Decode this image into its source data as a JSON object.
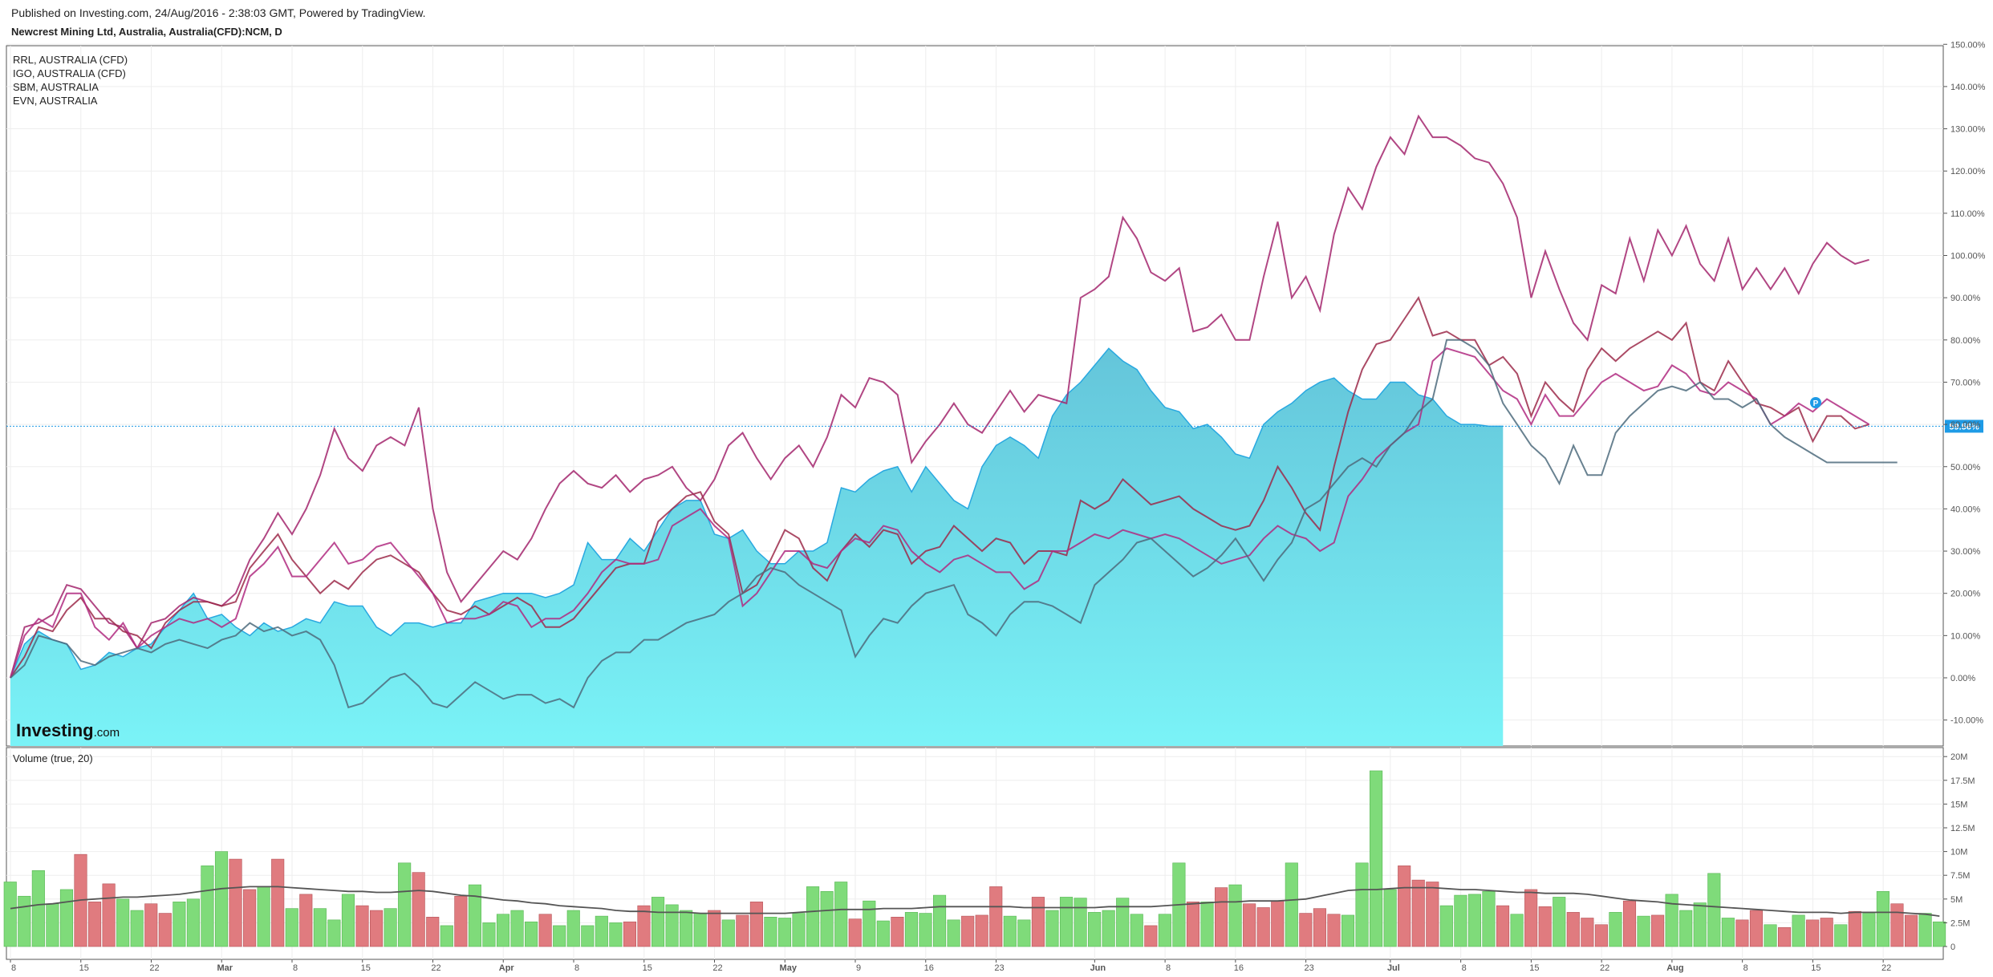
{
  "header": {
    "published": "Published on Investing.com, 24/Aug/2016 - 2:38:03 GMT, Powered by TradingView.",
    "symbol": "Newcrest Mining Ltd, Australia, Australia(CFD):NCM, D"
  },
  "logo": {
    "main": "Investing",
    "suffix": ".com"
  },
  "colors": {
    "area_fill_top": "#64c5da",
    "area_fill_bottom": "#7af3f7",
    "area_line": "#29a8e0",
    "magenta": "#a3266d",
    "maroon": "#9c2a4a",
    "gray": "#4e6b7c",
    "price_label": "#1e9be6",
    "vol_up": "#7fdb7a",
    "vol_down": "#e07b7f",
    "vol_ma": "#555555",
    "grid": "#eeeeee"
  },
  "chart_data": {
    "type": "line",
    "title": "Newcrest Mining Ltd, Australia, Australia(CFD):NCM, D",
    "y_unit": "%",
    "ylim": [
      -16,
      150
    ],
    "y_ticks": [
      "150.00%",
      "140.00%",
      "130.00%",
      "120.00%",
      "110.00%",
      "100.00%",
      "90.00%",
      "80.00%",
      "70.00%",
      "60.00%",
      "50.00%",
      "40.00%",
      "30.00%",
      "20.00%",
      "10.00%",
      "0.00%",
      "-10.00%"
    ],
    "y_tick_values": [
      150,
      140,
      130,
      120,
      110,
      100,
      90,
      80,
      70,
      60,
      50,
      40,
      30,
      20,
      10,
      0,
      -10
    ],
    "x_ticks": [
      {
        "label": "8",
        "i": 0
      },
      {
        "label": "15",
        "i": 5
      },
      {
        "label": "22",
        "i": 10
      },
      {
        "label": "Mar",
        "i": 15
      },
      {
        "label": "8",
        "i": 20
      },
      {
        "label": "15",
        "i": 25
      },
      {
        "label": "22",
        "i": 30
      },
      {
        "label": "Apr",
        "i": 35
      },
      {
        "label": "8",
        "i": 40
      },
      {
        "label": "15",
        "i": 45
      },
      {
        "label": "22",
        "i": 50
      },
      {
        "label": "May",
        "i": 55
      },
      {
        "label": "9",
        "i": 60
      },
      {
        "label": "16",
        "i": 65
      },
      {
        "label": "23",
        "i": 70
      },
      {
        "label": "Jun",
        "i": 77
      },
      {
        "label": "8",
        "i": 82
      },
      {
        "label": "16",
        "i": 87
      },
      {
        "label": "23",
        "i": 92
      },
      {
        "label": "Jul",
        "i": 98
      },
      {
        "label": "8",
        "i": 103
      },
      {
        "label": "15",
        "i": 108
      },
      {
        "label": "22",
        "i": 113
      },
      {
        "label": "Aug",
        "i": 118
      },
      {
        "label": "8",
        "i": 123
      },
      {
        "label": "15",
        "i": 128
      },
      {
        "label": "22",
        "i": 133
      }
    ],
    "last_price_label": "59.56%",
    "last_price_value": 59.56,
    "legend": [
      "RRL, AUSTRALIA (CFD)",
      "IGO, AUSTRALIA (CFD)",
      "SBM, AUSTRALIA",
      "EVN, AUSTRALIA"
    ],
    "main_area": {
      "name": "NCM",
      "values": [
        0,
        8,
        11,
        9,
        8,
        2,
        3,
        6,
        5,
        7,
        8,
        12,
        16,
        20,
        14,
        15,
        12,
        10,
        13,
        11,
        12,
        14,
        13,
        18,
        17,
        17,
        12,
        10,
        13,
        13,
        12,
        13,
        13,
        18,
        19,
        20,
        20,
        20,
        19,
        20,
        22,
        32,
        28,
        28,
        33,
        30,
        35,
        40,
        42,
        42,
        34,
        33,
        35,
        30,
        27,
        27,
        30,
        30,
        32,
        45,
        44,
        47,
        49,
        50,
        44,
        50,
        46,
        42,
        40,
        50,
        55,
        57,
        55,
        52,
        62,
        67,
        70,
        74,
        78,
        75,
        73,
        68,
        64,
        63,
        59,
        60,
        57,
        53,
        52,
        60,
        63,
        65,
        68,
        70,
        71,
        68,
        66,
        66,
        70,
        70,
        67,
        66,
        62,
        60,
        60,
        59.56,
        59.56
      ]
    },
    "series": [
      {
        "label": "RRL, AUSTRALIA (CFD)",
        "color": "#a3266d",
        "values": [
          0,
          12,
          13,
          15,
          22,
          21,
          17,
          13,
          12,
          7,
          13,
          14,
          17,
          19,
          18,
          17,
          20,
          28,
          33,
          39,
          34,
          40,
          48,
          59,
          52,
          49,
          55,
          57,
          55,
          64,
          40,
          25,
          18,
          22,
          26,
          30,
          28,
          33,
          40,
          46,
          49,
          46,
          45,
          48,
          44,
          47,
          48,
          50,
          45,
          42,
          47,
          55,
          58,
          52,
          47,
          52,
          55,
          50,
          57,
          67,
          64,
          71,
          70,
          67,
          51,
          56,
          60,
          65,
          60,
          58,
          63,
          68,
          63,
          67,
          66,
          65,
          90,
          92,
          95,
          109,
          104,
          96,
          94,
          97,
          82,
          83,
          86,
          80,
          80,
          95,
          108,
          90,
          95,
          87,
          105,
          116,
          111,
          121,
          128,
          124,
          133,
          128,
          128,
          126,
          123,
          122,
          117,
          109,
          90,
          101,
          92,
          84,
          80,
          93,
          91,
          104,
          94,
          106,
          100,
          107,
          98,
          94,
          104,
          92,
          97,
          92,
          97,
          91,
          98,
          103,
          100,
          98,
          99
        ]
      },
      {
        "label": "IGO, AUSTRALIA (CFD)",
        "color": "#9c2a4a",
        "values": [
          0,
          5,
          12,
          11,
          16,
          19,
          14,
          14,
          11,
          10,
          7,
          13,
          16,
          18,
          18,
          17,
          18,
          26,
          30,
          34,
          28,
          24,
          20,
          23,
          21,
          25,
          28,
          29,
          27,
          25,
          20,
          16,
          15,
          17,
          15,
          17,
          19,
          17,
          12,
          12,
          14,
          18,
          22,
          26,
          27,
          27,
          37,
          40,
          43,
          44,
          37,
          34,
          20,
          22,
          28,
          35,
          33,
          26,
          23,
          30,
          34,
          31,
          35,
          34,
          27,
          30,
          31,
          36,
          33,
          30,
          33,
          32,
          27,
          30,
          30,
          29,
          42,
          40,
          42,
          47,
          44,
          41,
          42,
          43,
          40,
          38,
          36,
          35,
          36,
          42,
          50,
          45,
          39,
          35,
          50,
          63,
          73,
          79,
          80,
          85,
          90,
          81,
          82,
          80,
          80,
          74,
          76,
          72,
          62,
          70,
          66,
          63,
          73,
          78,
          75,
          78,
          80,
          82,
          80,
          84,
          70,
          68,
          75,
          70,
          65,
          64,
          62,
          64,
          56,
          62,
          62,
          59,
          60
        ]
      },
      {
        "label": "SBM, AUSTRALIA",
        "color": "#b02a80",
        "values": [
          0,
          10,
          14,
          12,
          20,
          20,
          12,
          9,
          13,
          7,
          10,
          12,
          14,
          13,
          14,
          12,
          14,
          24,
          27,
          31,
          24,
          24,
          28,
          32,
          27,
          28,
          31,
          32,
          28,
          24,
          20,
          13,
          14,
          14,
          15,
          18,
          17,
          12,
          14,
          14,
          16,
          20,
          25,
          28,
          27,
          27,
          28,
          36,
          38,
          40,
          36,
          33,
          17,
          20,
          25,
          30,
          30,
          27,
          26,
          30,
          33,
          32,
          36,
          35,
          30,
          27,
          25,
          28,
          29,
          27,
          25,
          25,
          21,
          23,
          30,
          30,
          32,
          34,
          33,
          35,
          34,
          33,
          34,
          33,
          31,
          29,
          27,
          28,
          29,
          33,
          36,
          34,
          33,
          30,
          32,
          43,
          47,
          52,
          55,
          58,
          60,
          75,
          78,
          77,
          76,
          72,
          68,
          66,
          60,
          67,
          62,
          62,
          66,
          70,
          72,
          70,
          68,
          69,
          74,
          72,
          68,
          67,
          70,
          68,
          66,
          60,
          62,
          65,
          63,
          66,
          64,
          62,
          60
        ]
      },
      {
        "label": "EVN, AUSTRALIA",
        "color": "#4e6b7c",
        "values": [
          0,
          3,
          10,
          9,
          8,
          4,
          3,
          5,
          6,
          7,
          6,
          8,
          9,
          8,
          7,
          9,
          10,
          13,
          11,
          12,
          10,
          11,
          9,
          3,
          -7,
          -6,
          -3,
          0,
          1,
          -2,
          -6,
          -7,
          -4,
          -1,
          -3,
          -5,
          -4,
          -4,
          -6,
          -5,
          -7,
          0,
          4,
          6,
          6,
          9,
          9,
          11,
          13,
          14,
          15,
          18,
          20,
          24,
          26,
          25,
          22,
          20,
          18,
          16,
          5,
          10,
          14,
          13,
          17,
          20,
          21,
          22,
          15,
          13,
          10,
          15,
          18,
          18,
          17,
          15,
          13,
          22,
          25,
          28,
          32,
          33,
          30,
          27,
          24,
          26,
          29,
          33,
          28,
          23,
          28,
          32,
          40,
          42,
          46,
          50,
          52,
          50,
          55,
          58,
          63,
          66,
          80,
          80,
          78,
          74,
          65,
          60,
          55,
          52,
          46,
          55,
          48,
          48,
          58,
          62,
          65,
          68,
          69,
          68,
          70,
          66,
          66,
          64,
          66,
          60,
          57,
          55,
          53,
          51,
          51,
          51,
          51,
          51,
          51
        ]
      }
    ],
    "volume": {
      "title": "Volume (true, 20)",
      "ylim": [
        0,
        20000000
      ],
      "y_ticks": [
        "20M",
        "17.5M",
        "15M",
        "12.5M",
        "10M",
        "7.5M",
        "5M",
        "2.5M",
        "0"
      ],
      "y_tick_values": [
        20000000,
        17500000,
        15000000,
        12500000,
        10000000,
        7500000,
        5000000,
        2500000,
        0
      ],
      "values": [
        6.8,
        5.3,
        8,
        4.5,
        6,
        9.7,
        4.7,
        6.6,
        5,
        3.8,
        4.5,
        3.5,
        4.7,
        5,
        8.5,
        10,
        9.2,
        6,
        6.3,
        9.2,
        4,
        5.5,
        4,
        2.8,
        5.5,
        4.3,
        3.8,
        4,
        8.8,
        7.8,
        3.1,
        2.2,
        5.3,
        6.5,
        2.5,
        3.4,
        3.8,
        2.6,
        3.4,
        2.2,
        3.8,
        2.2,
        3.2,
        2.5,
        2.6,
        4.3,
        5.2,
        4.4,
        3.8,
        3.5,
        3.8,
        2.8,
        3.3,
        4.7,
        3.1,
        3,
        3.5,
        6.3,
        5.8,
        6.8,
        2.9,
        4.8,
        2.7,
        3.1,
        3.6,
        3.5,
        5.4,
        2.8,
        3.2,
        3.3,
        6.3,
        3.2,
        2.8,
        5.2,
        3.8,
        5.2,
        5.1,
        3.6,
        3.8,
        5.1,
        3.4,
        2.2,
        3.4,
        8.8,
        4.7,
        4.7,
        6.2,
        6.5,
        4.5,
        4.1,
        4.8,
        8.8,
        3.5,
        4,
        3.4,
        3.3,
        8.8,
        18.5,
        6,
        8.5,
        7,
        6.8,
        4.3,
        5.4,
        5.5,
        5.8,
        4.3,
        3.4,
        6,
        4.2,
        5.2,
        3.6,
        3,
        2.3,
        3.6,
        4.8,
        3.2,
        3.3,
        5.5,
        3.8,
        4.6,
        7.7,
        3,
        2.8,
        3.8,
        2.3,
        2,
        3.3,
        2.8,
        3,
        2.3,
        3.7,
        3.5,
        5.8,
        4.5,
        3.3,
        3.5,
        2.6
      ],
      "up": [
        true,
        true,
        true,
        true,
        true,
        false,
        false,
        false,
        true,
        true,
        false,
        false,
        true,
        true,
        true,
        true,
        false,
        false,
        true,
        false,
        true,
        false,
        true,
        true,
        true,
        false,
        false,
        true,
        true,
        false,
        false,
        true,
        false,
        true,
        true,
        true,
        true,
        true,
        false,
        true,
        true,
        true,
        true,
        true,
        false,
        false,
        true,
        true,
        true,
        true,
        false,
        true,
        false,
        false,
        true,
        true,
        true,
        true,
        true,
        true,
        false,
        true,
        true,
        false,
        true,
        true,
        true,
        true,
        false,
        false,
        false,
        true,
        true,
        false,
        true,
        true,
        true,
        true,
        true,
        true,
        true,
        false,
        true,
        true,
        false,
        true,
        false,
        true,
        false,
        false,
        false,
        true,
        false,
        false,
        false,
        true,
        true,
        true,
        true,
        false,
        false,
        false,
        true,
        true,
        true,
        true,
        false,
        true,
        false,
        false,
        true,
        false,
        false,
        false,
        true,
        false,
        true,
        false,
        true,
        true,
        true,
        true,
        true,
        false,
        false,
        true,
        false,
        true,
        false,
        false,
        true,
        false,
        true,
        true,
        false,
        false,
        true,
        true,
        false
      ],
      "ma": [
        4,
        4.2,
        4.4,
        4.5,
        4.7,
        4.9,
        5,
        5.1,
        5.2,
        5.2,
        5.3,
        5.4,
        5.5,
        5.7,
        5.9,
        6.1,
        6.2,
        6.3,
        6.3,
        6.3,
        6.2,
        6.1,
        6,
        5.9,
        5.8,
        5.8,
        5.7,
        5.7,
        5.8,
        5.9,
        5.8,
        5.6,
        5.4,
        5.3,
        5.1,
        4.9,
        4.8,
        4.6,
        4.5,
        4.3,
        4.2,
        4.1,
        4,
        3.8,
        3.7,
        3.7,
        3.6,
        3.6,
        3.6,
        3.5,
        3.5,
        3.5,
        3.5,
        3.5,
        3.5,
        3.5,
        3.6,
        3.7,
        3.8,
        3.9,
        3.9,
        3.9,
        4,
        4,
        4,
        4.1,
        4.2,
        4.2,
        4.2,
        4.2,
        4.2,
        4.2,
        4.1,
        4.1,
        4.1,
        4.1,
        4.1,
        4.1,
        4.2,
        4.2,
        4.2,
        4.2,
        4.3,
        4.4,
        4.5,
        4.6,
        4.7,
        4.7,
        4.8,
        4.8,
        4.8,
        4.9,
        5,
        5.3,
        5.6,
        5.9,
        6,
        6,
        6.1,
        6.2,
        6.2,
        6.2,
        6.1,
        6,
        6,
        5.9,
        5.8,
        5.7,
        5.7,
        5.6,
        5.6,
        5.6,
        5.5,
        5.3,
        5.1,
        4.9,
        4.8,
        4.7,
        4.5,
        4.4,
        4.3,
        4.2,
        4.1,
        4,
        3.9,
        3.8,
        3.7,
        3.6,
        3.6,
        3.6,
        3.5,
        3.6,
        3.6,
        3.6,
        3.6,
        3.5,
        3.4,
        3.2
      ]
    }
  }
}
